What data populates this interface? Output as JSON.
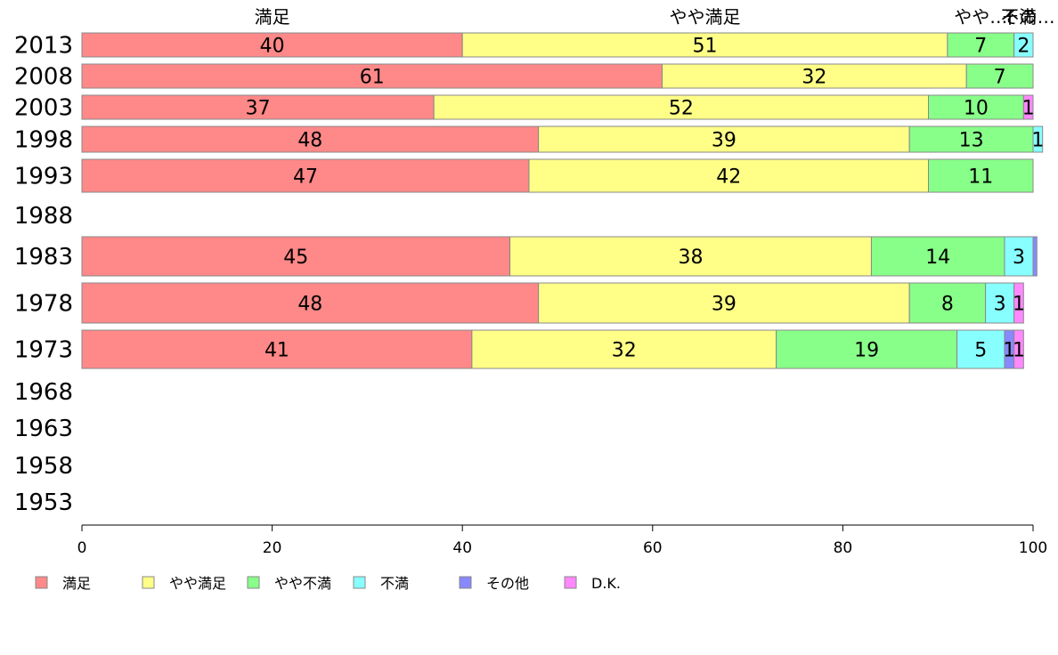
{
  "chart_data": {
    "type": "bar",
    "orientation": "horizontal",
    "stacked": true,
    "title": "",
    "xlabel": "",
    "ylabel": "",
    "xlim": [
      0,
      100
    ],
    "xticks": [
      0,
      20,
      40,
      60,
      80,
      100
    ],
    "grid": false,
    "legend_position": "bottom",
    "categories": [
      "2013",
      "2008",
      "2003",
      "1998",
      "1993",
      "1988",
      "1983",
      "1978",
      "1973",
      "1968",
      "1963",
      "1958",
      "1953"
    ],
    "series": [
      {
        "name": "満足",
        "color": "#ff8888",
        "values": [
          40,
          61,
          37,
          48,
          47,
          null,
          45,
          48,
          41,
          null,
          null,
          null,
          null
        ]
      },
      {
        "name": "やや満足",
        "color": "#ffff88",
        "values": [
          51,
          32,
          52,
          39,
          42,
          null,
          38,
          39,
          32,
          null,
          null,
          null,
          null
        ]
      },
      {
        "name": "やや不満",
        "color": "#88ff88",
        "values": [
          7,
          7,
          10,
          13,
          11,
          null,
          14,
          8,
          19,
          null,
          null,
          null,
          null
        ]
      },
      {
        "name": "不満",
        "color": "#88ffff",
        "values": [
          2,
          0,
          0,
          1,
          0,
          null,
          3,
          3,
          5,
          null,
          null,
          null,
          null
        ]
      },
      {
        "name": "その他",
        "color": "#8888ff",
        "values": [
          0,
          0,
          0,
          0,
          0,
          null,
          0.4,
          0,
          1,
          null,
          null,
          null,
          null
        ]
      },
      {
        "name": "D.K.",
        "color": "#ff88ff",
        "values": [
          0,
          0,
          1,
          0,
          0,
          null,
          0,
          1,
          1,
          null,
          null,
          null,
          null
        ]
      }
    ],
    "top_labels": [
      {
        "text": "満足",
        "x": 20
      },
      {
        "text": "やや満足",
        "x": 65.5
      },
      {
        "text": "やや…",
        "x": 94.5
      },
      {
        "text": "不満",
        "x": 98.5
      },
      {
        "text": "その…",
        "x": 99.5
      }
    ]
  }
}
